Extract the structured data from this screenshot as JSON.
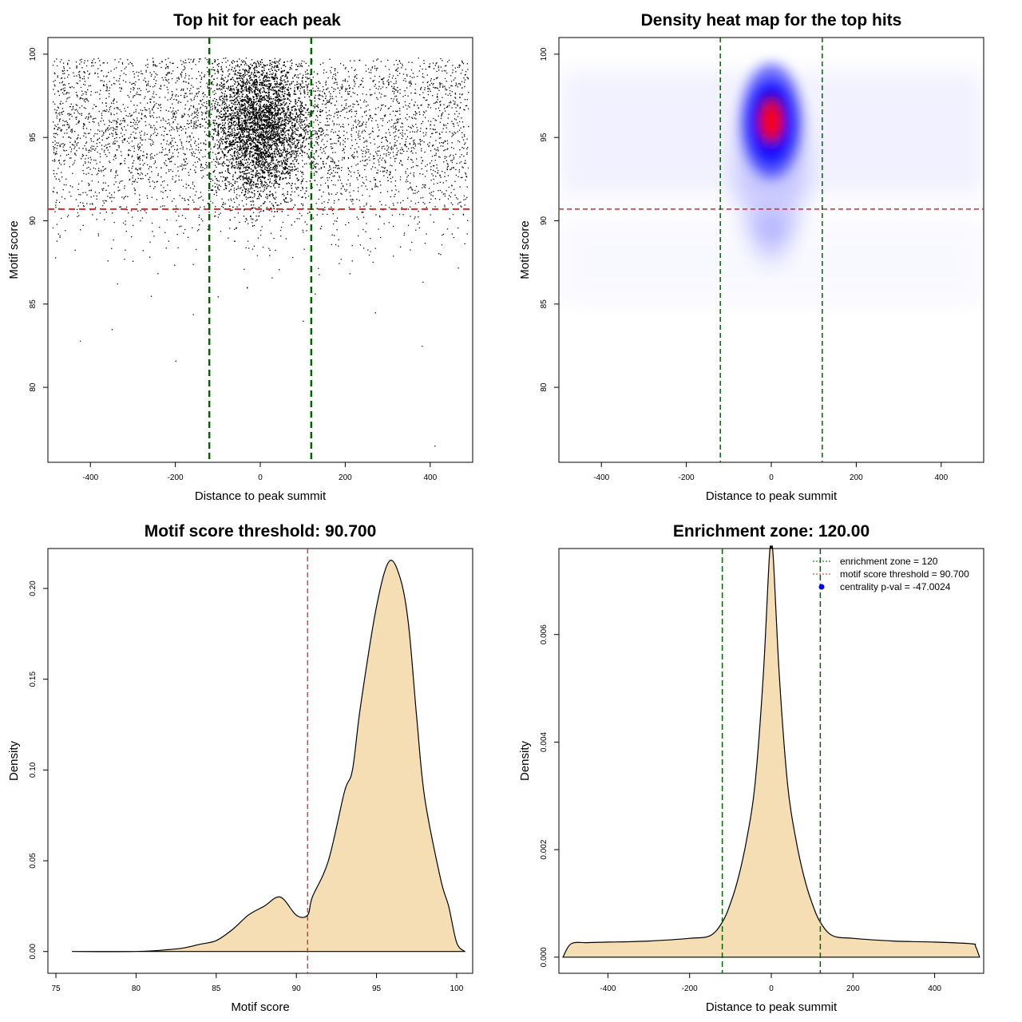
{
  "colors": {
    "threshold_line": "#d62728",
    "zone_line": "#006400",
    "density_fill": "#f5deb3",
    "heat_low": "#ffffff",
    "heat_mid": "#0000ff",
    "heat_high": "#ff0000",
    "legend_dot": "#0000ff"
  },
  "chart_data": [
    {
      "type": "scatter",
      "title": "Top hit for each peak",
      "xlabel": "Distance to peak summit",
      "ylabel": "Motif score",
      "xlim": [
        -500,
        500
      ],
      "ylim": [
        75.5,
        101
      ],
      "xticks": [
        -400,
        -200,
        0,
        200,
        400
      ],
      "yticks": [
        80,
        85,
        90,
        95,
        100
      ],
      "threshold_y": 90.7,
      "zone_x": [
        -120,
        120
      ],
      "point_description_values": {
        "count_background": 4500,
        "count_central": 9000,
        "outliers": [
          [
            -425,
            82.8
          ],
          [
            -350,
            83.5
          ],
          [
            -200,
            81.6
          ],
          [
            -120,
            83.2
          ],
          [
            100,
            84
          ],
          [
            270,
            84.5
          ],
          [
            380,
            82.5
          ],
          [
            410,
            76.5
          ]
        ]
      }
    },
    {
      "type": "heatmap",
      "title": "Density heat map for the top hits",
      "xlabel": "Distance to peak summit",
      "ylabel": "Motif score",
      "xlim": [
        -500,
        500
      ],
      "ylim": [
        75.5,
        101
      ],
      "xticks": [
        -400,
        -200,
        0,
        200,
        400
      ],
      "yticks": [
        80,
        85,
        90,
        95,
        100
      ],
      "threshold_y": 90.7,
      "zone_x": [
        -120,
        120
      ],
      "peak": [
        0,
        96
      ]
    },
    {
      "type": "area",
      "title": "Motif score threshold: 90.700",
      "xlabel": "Motif score",
      "ylabel": "Density",
      "xlim": [
        74.5,
        101
      ],
      "ylim": [
        -0.012,
        0.222
      ],
      "xticks": [
        75,
        80,
        85,
        90,
        95,
        100
      ],
      "yticks": [
        0.0,
        0.05,
        0.1,
        0.15,
        0.2
      ],
      "ytick_labels": [
        "0.00",
        "0.05",
        "0.10",
        "0.15",
        "0.20"
      ],
      "threshold_x": 90.7,
      "x": [
        76,
        80,
        82,
        83,
        84,
        85,
        86,
        87,
        88,
        89,
        90,
        90.7,
        91,
        92,
        93,
        93.5,
        94,
        95,
        95.8,
        96.5,
        97,
        97.5,
        98,
        99,
        99.5,
        100,
        100.5
      ],
      "y": [
        0.0,
        0.0,
        0.001,
        0.002,
        0.004,
        0.006,
        0.012,
        0.02,
        0.025,
        0.03,
        0.02,
        0.02,
        0.03,
        0.05,
        0.088,
        0.1,
        0.135,
        0.19,
        0.215,
        0.205,
        0.18,
        0.13,
        0.085,
        0.04,
        0.025,
        0.005,
        0.0
      ]
    },
    {
      "type": "area",
      "title": "Enrichment zone: 120.00",
      "xlabel": "Distance to peak summit",
      "ylabel": "Density",
      "xlim": [
        -520,
        520
      ],
      "ylim": [
        -0.0003,
        0.0076
      ],
      "xticks": [
        -400,
        -200,
        0,
        200,
        400
      ],
      "yticks": [
        0.0,
        0.002,
        0.004,
        0.006
      ],
      "ytick_labels": [
        "0.000",
        "0.002",
        "0.004",
        "0.006"
      ],
      "zone_x": [
        -120,
        120
      ],
      "x": [
        -510,
        -490,
        -450,
        -400,
        -300,
        -200,
        -150,
        -120,
        -100,
        -80,
        -60,
        -40,
        -20,
        -5,
        0,
        5,
        20,
        40,
        60,
        80,
        100,
        120,
        150,
        200,
        300,
        400,
        490,
        500,
        510
      ],
      "y": [
        0.0,
        0.00025,
        0.00027,
        0.00028,
        0.0003,
        0.00035,
        0.0004,
        0.00065,
        0.001,
        0.0015,
        0.0022,
        0.0032,
        0.0052,
        0.0074,
        0.0076,
        0.0074,
        0.0052,
        0.0032,
        0.0022,
        0.0015,
        0.001,
        0.00065,
        0.0004,
        0.00035,
        0.0003,
        0.00028,
        0.00025,
        0.0002,
        0.0
      ],
      "legend": {
        "position": "top-right",
        "entries": [
          "enrichment zone = 120",
          "motif score threshold = 90.700",
          "centrality p-val = -47.0024"
        ]
      }
    }
  ]
}
